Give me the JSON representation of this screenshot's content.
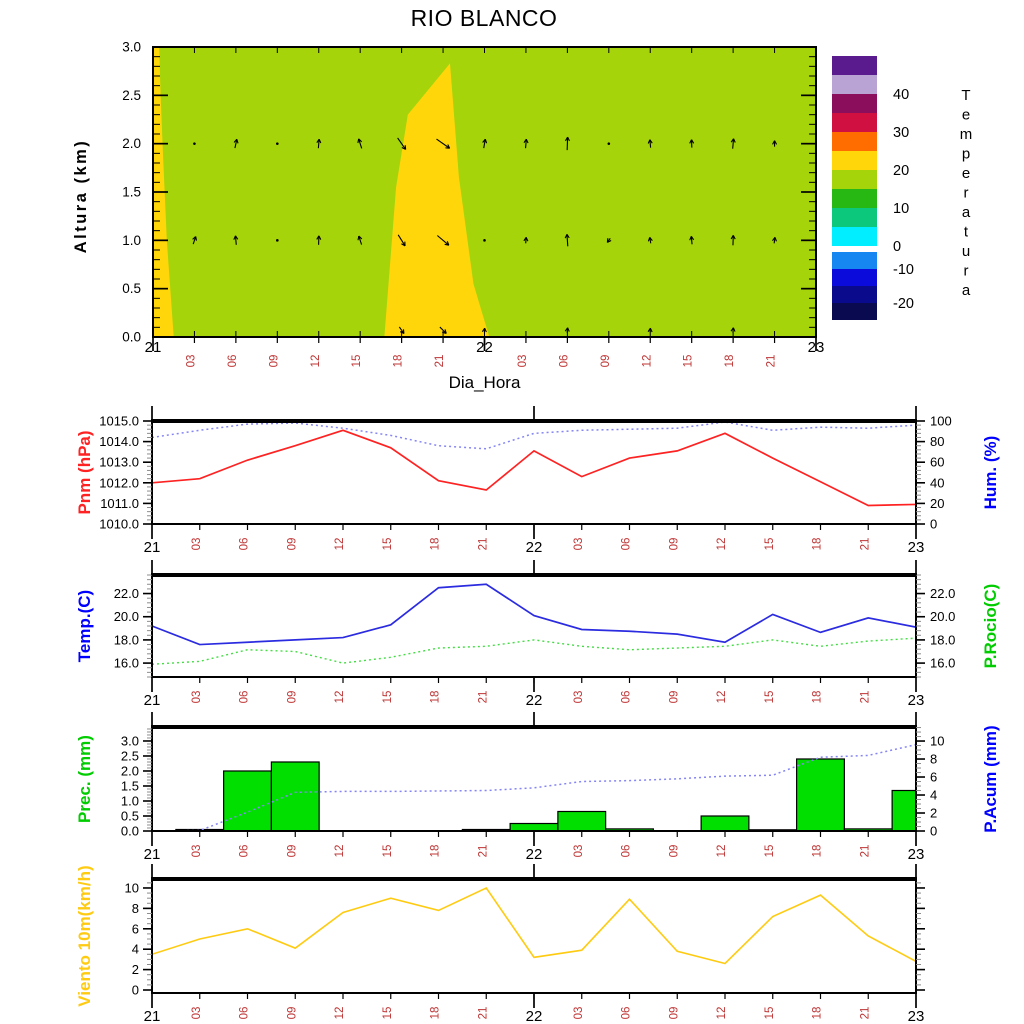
{
  "title": "RIO BLANCO",
  "palette": {
    "plot_green": "#A6D40A",
    "plot_gold": "#FFD60A",
    "pnm_red": "#FF2222",
    "blue_label": "#0000FF",
    "hum_blue_line": "#8585F5",
    "temp_blue_line": "#2B2BE0",
    "green_label": "#00CC00",
    "rocio_green_line": "#44DD44",
    "prec_green_fill": "#00DF00",
    "acum_blue_line": "#8585F5",
    "viento_gold": "#FFCB12",
    "axis_red_label": "#BF3535",
    "black": "#000000"
  },
  "x_axis": {
    "day_labels": [
      "21",
      "22",
      "23"
    ],
    "day_hours": [
      0,
      24,
      48
    ],
    "hour_step": 3
  },
  "chart_data": [
    {
      "type": "heatmap",
      "name": "altura-tiempo-temperatura",
      "ylabel": "Altura (km)",
      "xlabel": "Dia_Hora",
      "ylim": [
        0,
        3
      ],
      "ytick_step": 0.5,
      "yminor_step": 0.1,
      "background_color": "#A6D40A",
      "regions": [
        {
          "color": "#FFD60A",
          "points_h_km": [
            [
              0,
              3
            ],
            [
              0.45,
              3
            ],
            [
              0.55,
              2.5
            ],
            [
              0.72,
              1.9
            ],
            [
              1.0,
              1.0
            ],
            [
              1.5,
              0
            ],
            [
              0,
              0
            ]
          ]
        },
        {
          "color": "#FFD60A",
          "points_h_km": [
            [
              16.75,
              0
            ],
            [
              17.6,
              1.55
            ],
            [
              18.45,
              2.3
            ],
            [
              21.5,
              2.83
            ],
            [
              22.15,
              1.65
            ],
            [
              23.2,
              0.55
            ],
            [
              24.35,
              0
            ]
          ]
        }
      ],
      "wind_arrows": [
        [
          3,
          2,
          0,
          2
        ],
        [
          6,
          2,
          78,
          9
        ],
        [
          9,
          2,
          0,
          2
        ],
        [
          12,
          2,
          85,
          9
        ],
        [
          15,
          2,
          108,
          10
        ],
        [
          18,
          2,
          -55,
          14
        ],
        [
          21,
          2,
          -35,
          16
        ],
        [
          24,
          2,
          80,
          9
        ],
        [
          27,
          2,
          85,
          9
        ],
        [
          30,
          2,
          88,
          13
        ],
        [
          33,
          2,
          0,
          3
        ],
        [
          36,
          2,
          95,
          8
        ],
        [
          39,
          2,
          92,
          8
        ],
        [
          42,
          2,
          85,
          10
        ],
        [
          45,
          2,
          90,
          6
        ],
        [
          3,
          1,
          72,
          8
        ],
        [
          6,
          1,
          95,
          9
        ],
        [
          9,
          1,
          0,
          2
        ],
        [
          12,
          1,
          88,
          9
        ],
        [
          15,
          1,
          108,
          9
        ],
        [
          18,
          1,
          -58,
          13
        ],
        [
          21,
          1,
          -40,
          15
        ],
        [
          24,
          1,
          0,
          3
        ],
        [
          27,
          1,
          85,
          6
        ],
        [
          30,
          1,
          94,
          12
        ],
        [
          33,
          1,
          -125,
          5
        ],
        [
          36,
          1,
          100,
          6
        ],
        [
          39,
          1,
          95,
          8
        ],
        [
          42,
          1,
          88,
          10
        ],
        [
          45,
          1,
          82,
          6
        ],
        [
          18,
          0.07,
          -55,
          8
        ],
        [
          21,
          0.07,
          -45,
          9
        ],
        [
          24,
          0.07,
          85,
          4
        ],
        [
          30,
          0.07,
          85,
          5
        ],
        [
          36,
          0.07,
          85,
          4
        ],
        [
          42,
          0.07,
          85,
          5
        ]
      ],
      "colorbar": {
        "title": "Temperatura",
        "colors_top_to_bottom": [
          "#5A1B8E",
          "#B9A3D4",
          "#8A0E5C",
          "#D01040",
          "#FF6D00",
          "#FFD60A",
          "#A6D40A",
          "#28B814",
          "#0BC87D",
          "#00EEFF",
          "#FFFFFF",
          "#1687F0",
          "#0B0BDC",
          "#0A0A8C",
          "#0A0A50"
        ],
        "gap_index": 10,
        "labels": [
          {
            "text": "40",
            "after_index": 1
          },
          {
            "text": "30",
            "after_index": 3
          },
          {
            "text": "20",
            "after_index": 5
          },
          {
            "text": "10",
            "after_index": 7
          },
          {
            "text": "0",
            "after_index": 9
          },
          {
            "text": "-10",
            "after_index": 11
          },
          {
            "text": "-20",
            "after_index": 13
          }
        ]
      }
    },
    {
      "type": "line",
      "name": "presion-humedad",
      "hours": [
        0,
        3,
        6,
        9,
        12,
        15,
        18,
        21,
        24,
        27,
        30,
        33,
        36,
        39,
        42,
        45,
        48
      ],
      "left_axis": {
        "label": "Pnm (hPa)",
        "label_color": "pnm_red",
        "lim": [
          1010,
          1015
        ],
        "ticks": [
          1010,
          1011,
          1012,
          1013,
          1014,
          1015
        ],
        "minor": 0.2,
        "dec": 1
      },
      "right_axis": {
        "label": "Hum. (%)",
        "label_color": "blue_label",
        "lim": [
          0,
          100
        ],
        "ticks": [
          0,
          20,
          40,
          60,
          80,
          100
        ],
        "minor": 4,
        "dec": 0
      },
      "series": [
        {
          "name": "Pnm",
          "axis": "left",
          "style": "solid",
          "color": "pnm_red",
          "width": 1.7,
          "values": [
            1012.0,
            1012.2,
            1013.1,
            1013.8,
            1014.55,
            1013.7,
            1012.1,
            1011.65,
            1013.55,
            1012.3,
            1013.2,
            1013.55,
            1014.4,
            1013.2,
            1012.05,
            1010.9,
            1010.95
          ]
        },
        {
          "name": "Hum",
          "axis": "right",
          "style": "dotted",
          "color": "hum_blue_line",
          "width": 1.5,
          "values": [
            84,
            91,
            97,
            98,
            93,
            86,
            76,
            73,
            88,
            91,
            92,
            93,
            99,
            91,
            94,
            93,
            96
          ]
        }
      ]
    },
    {
      "type": "line",
      "name": "temperatura-rocio",
      "hours": [
        0,
        3,
        6,
        9,
        12,
        15,
        18,
        21,
        24,
        27,
        30,
        33,
        36,
        39,
        42,
        45,
        48
      ],
      "left_axis": {
        "label": "Temp.(C)",
        "label_color": "blue_label",
        "lim": [
          14.8,
          23.6
        ],
        "ticks": [
          16,
          18,
          20,
          22
        ],
        "minor": 0.4,
        "dec": 1
      },
      "right_axis": {
        "label": "P.Rocio(C)",
        "label_color": "green_label",
        "lim": [
          14.8,
          23.6
        ],
        "ticks": [
          16,
          18,
          20,
          22
        ],
        "minor": 0.4,
        "dec": 1
      },
      "series": [
        {
          "name": "Temp",
          "axis": "left",
          "style": "solid",
          "color": "temp_blue_line",
          "width": 1.7,
          "values": [
            19.2,
            17.6,
            17.8,
            18.0,
            18.2,
            19.3,
            22.5,
            22.8,
            20.1,
            18.9,
            18.75,
            18.5,
            17.8,
            20.2,
            18.65,
            19.9,
            19.1
          ]
        },
        {
          "name": "P.Rocio",
          "axis": "right",
          "style": "dotted",
          "color": "rocio_green_line",
          "width": 1.4,
          "values": [
            15.9,
            16.15,
            17.15,
            17.0,
            16.0,
            16.5,
            17.3,
            17.45,
            18.0,
            17.45,
            17.15,
            17.3,
            17.45,
            18.0,
            17.45,
            17.9,
            18.15
          ]
        }
      ]
    },
    {
      "type": "bar",
      "name": "precipitacion-acumulada",
      "hours": [
        0,
        3,
        6,
        9,
        12,
        15,
        18,
        21,
        24,
        27,
        30,
        33,
        36,
        39,
        42,
        45,
        48
      ],
      "left_axis": {
        "label": "Prec. (mm)",
        "label_color": "green_label",
        "lim": [
          0,
          3.466
        ],
        "ticks": [
          0,
          0.5,
          1,
          1.5,
          2,
          2.5,
          3
        ],
        "minor": 0.1,
        "dec": 1
      },
      "right_axis": {
        "label": "P.Acum (mm)",
        "label_color": "blue_label",
        "lim": [
          0,
          11.56
        ],
        "ticks": [
          0,
          2,
          4,
          6,
          8,
          10
        ],
        "minor": 0.5,
        "dec": 0
      },
      "series": [
        {
          "name": "Prec",
          "axis": "left",
          "style": "bars",
          "color": "prec_green_fill",
          "width": 1.2,
          "values": [
            0,
            0.05,
            2.0,
            2.3,
            0,
            0,
            0,
            0.05,
            0.25,
            0.65,
            0.07,
            0,
            0.5,
            0.04,
            2.4,
            0.07,
            1.35
          ]
        },
        {
          "name": "P.Acum",
          "axis": "right",
          "style": "dotted",
          "color": "acum_blue_line",
          "width": 1.5,
          "values": [
            0,
            0.05,
            2.1,
            4.3,
            4.4,
            4.4,
            4.45,
            4.5,
            4.8,
            5.5,
            5.6,
            5.8,
            6.1,
            6.2,
            8.2,
            8.4,
            9.6
          ]
        }
      ]
    },
    {
      "type": "line",
      "name": "viento-10m",
      "hours": [
        0,
        3,
        6,
        9,
        12,
        15,
        18,
        21,
        24,
        27,
        30,
        33,
        36,
        39,
        42,
        45,
        48
      ],
      "left_axis": {
        "label": "Viento 10m(km/h)",
        "label_color": "viento_gold",
        "lim": [
          -0.294,
          10.88
        ],
        "ticks": [
          0,
          2,
          4,
          6,
          8,
          10
        ],
        "minor": 0.5,
        "dec": 0
      },
      "series": [
        {
          "name": "Viento 10m",
          "axis": "left",
          "style": "solid",
          "color": "viento_gold",
          "width": 1.6,
          "values": [
            3.5,
            5.0,
            6.0,
            4.1,
            7.6,
            9.0,
            7.8,
            10.0,
            3.2,
            3.9,
            8.9,
            3.8,
            2.6,
            7.2,
            9.3,
            5.3,
            2.8
          ]
        }
      ]
    }
  ]
}
